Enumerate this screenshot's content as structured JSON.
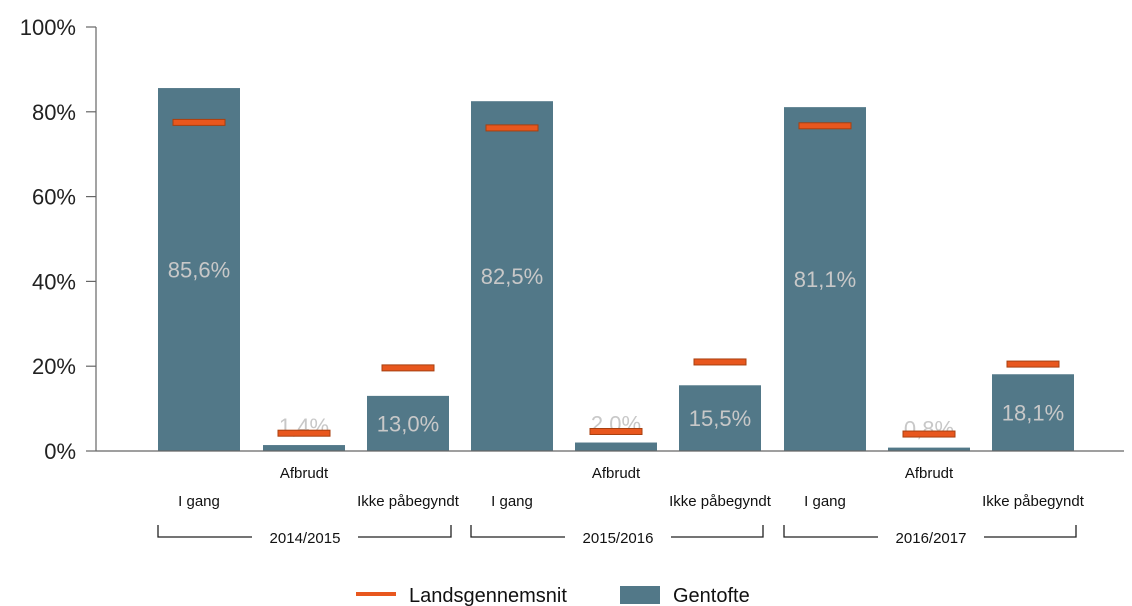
{
  "chart_data": {
    "type": "bar",
    "title": "",
    "xlabel": "",
    "ylabel": "",
    "ylim": [
      0,
      100
    ],
    "y_ticks": [
      "0%",
      "20%",
      "40%",
      "60%",
      "80%",
      "100%"
    ],
    "groups": [
      "2014/2015",
      "2015/2016",
      "2016/2017"
    ],
    "category_names": [
      "I gang",
      "Afbrudt",
      "Ikke påbegyndt"
    ],
    "categories": [
      "I gang",
      "Afbrudt",
      "Ikke påbegyndt",
      "I gang",
      "Afbrudt",
      "Ikke påbegyndt",
      "I gang",
      "Afbrudt",
      "Ikke påbegyndt"
    ],
    "series": [
      {
        "name": "Gentofte",
        "type": "bar",
        "values": [
          85.6,
          1.4,
          13.0,
          82.5,
          2.0,
          15.5,
          81.1,
          0.8,
          18.1
        ],
        "labels": [
          "85,6%",
          "1,4%",
          "13,0%",
          "82,5%",
          "2,0%",
          "15,5%",
          "81,1%",
          "0,8%",
          "18,1%"
        ]
      },
      {
        "name": "Landsgennemsnit",
        "type": "marker",
        "values": [
          77.5,
          4.2,
          19.6,
          76.2,
          4.6,
          21.0,
          76.7,
          4.0,
          20.5
        ]
      }
    ],
    "legend": {
      "placement": "bottom",
      "items": [
        "Landsgennemsnit",
        "Gentofte"
      ]
    },
    "colors": {
      "bar": "#527888",
      "marker": "#e8571e",
      "marker_edge": "#a84010"
    },
    "grid": false
  }
}
